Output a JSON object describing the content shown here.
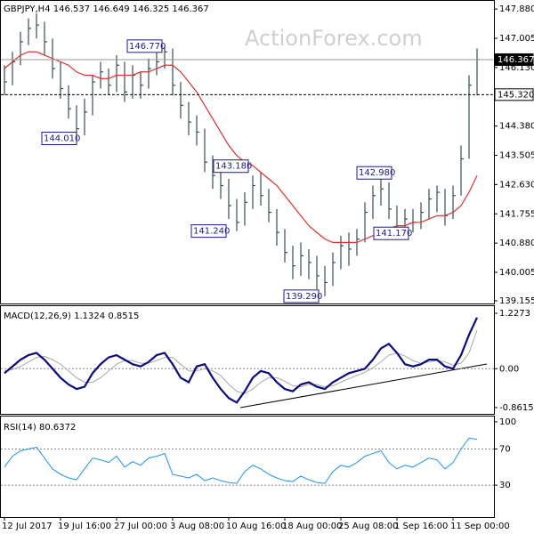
{
  "chart_data": [
    {
      "type": "ohlc",
      "title": "GBPJPY,H4",
      "readout": [
        146.537,
        146.649,
        146.325,
        146.367
      ],
      "watermark": "ActionForex.com",
      "categories": [
        "12 Jul 2017",
        null,
        null,
        null,
        null,
        null,
        null,
        "19 Jul 16:00",
        null,
        null,
        null,
        null,
        null,
        null,
        "27 Jul 00:00",
        null,
        null,
        null,
        null,
        null,
        null,
        "3 Aug 08:00",
        null,
        null,
        null,
        null,
        null,
        null,
        "10 Aug 16:00",
        null,
        null,
        null,
        null,
        null,
        null,
        "18 Aug 00:00",
        null,
        null,
        null,
        null,
        null,
        null,
        "25 Aug 08:00",
        null,
        null,
        null,
        null,
        null,
        null,
        "1 Sep 16:00",
        null,
        null,
        null,
        null,
        null,
        null,
        "11 Sep 00:00",
        null,
        null,
        null
      ],
      "color": "#36504f",
      "high": [
        146.2,
        146.6,
        147.2,
        147.6,
        147.75,
        147.5,
        147.0,
        146.3,
        145.6,
        145.0,
        145.2,
        145.9,
        146.3,
        146.1,
        146.5,
        146.3,
        146.2,
        146.0,
        146.4,
        146.6,
        146.77,
        146.7,
        145.7,
        145.1,
        144.7,
        144.3,
        143.5,
        143.18,
        142.8,
        142.2,
        142.4,
        142.9,
        143.0,
        142.5,
        141.9,
        141.3,
        140.8,
        140.9,
        140.7,
        140.5,
        140.2,
        140.6,
        141.1,
        141.2,
        141.3,
        142.1,
        142.6,
        142.98,
        142.7,
        142.0,
        141.9,
        141.9,
        142.1,
        142.5,
        142.6,
        142.5,
        142.6,
        143.8,
        145.9,
        146.7
      ],
      "low": [
        145.3,
        145.6,
        146.2,
        146.8,
        147.0,
        146.5,
        145.8,
        145.2,
        144.6,
        144.01,
        144.1,
        144.7,
        145.5,
        145.3,
        145.4,
        145.1,
        145.2,
        145.2,
        145.5,
        145.9,
        146.1,
        145.3,
        144.6,
        144.1,
        143.8,
        143.0,
        142.5,
        142.2,
        141.6,
        141.24,
        141.4,
        141.9,
        142.0,
        141.5,
        140.8,
        140.3,
        139.8,
        139.9,
        139.8,
        139.5,
        139.29,
        139.6,
        140.1,
        140.2,
        140.5,
        140.9,
        141.6,
        142.0,
        141.6,
        141.17,
        141.2,
        141.2,
        141.3,
        141.6,
        141.8,
        141.4,
        141.6,
        142.3,
        143.4,
        145.3
      ],
      "close": [
        145.7,
        146.3,
        146.9,
        147.3,
        147.4,
        146.9,
        146.1,
        145.5,
        144.9,
        144.3,
        144.8,
        145.7,
        146.0,
        145.6,
        146.2,
        145.4,
        145.9,
        145.6,
        146.1,
        146.3,
        146.6,
        145.6,
        145.0,
        144.5,
        144.2,
        143.3,
        142.9,
        142.6,
        142.0,
        141.5,
        142.1,
        142.6,
        142.3,
        141.8,
        141.2,
        140.6,
        140.2,
        140.5,
        140.3,
        139.9,
        139.7,
        140.3,
        140.8,
        140.7,
        141.0,
        141.8,
        142.3,
        142.5,
        141.9,
        141.4,
        141.6,
        141.5,
        141.8,
        142.2,
        142.4,
        141.7,
        142.3,
        143.4,
        145.6,
        146.367
      ],
      "series": [
        {
          "color": "#e03030",
          "values": [
            146.1,
            146.3,
            146.5,
            146.6,
            146.6,
            146.5,
            146.4,
            146.3,
            146.2,
            146.0,
            145.9,
            145.9,
            145.8,
            145.8,
            145.9,
            145.9,
            145.9,
            146.0,
            146.0,
            146.1,
            146.2,
            146.2,
            146.0,
            145.7,
            145.4,
            145.0,
            144.6,
            144.2,
            143.8,
            143.5,
            143.3,
            143.2,
            143.0,
            142.8,
            142.6,
            142.3,
            142.0,
            141.7,
            141.4,
            141.2,
            141.0,
            140.9,
            140.9,
            140.9,
            140.9,
            141.0,
            141.1,
            141.2,
            141.3,
            141.4,
            141.4,
            141.5,
            141.5,
            141.6,
            141.7,
            141.7,
            141.8,
            142.0,
            142.4,
            142.9
          ]
        }
      ],
      "price_lines": [
        {
          "value": 146.367,
          "label": "146.367",
          "style": "solid"
        },
        {
          "value": 145.32,
          "label": "145.320",
          "style": "dashed"
        }
      ],
      "annotations": [
        {
          "value": 146.77,
          "label": "146.770"
        },
        {
          "value": 144.01,
          "label": "144.010"
        },
        {
          "value": 143.18,
          "label": "143.180"
        },
        {
          "value": 141.24,
          "label": "141.240"
        },
        {
          "value": 142.98,
          "label": "142.980"
        },
        {
          "value": 141.17,
          "label": "141.170"
        },
        {
          "value": 139.29,
          "label": "139.290"
        }
      ],
      "ylim": [
        139.1,
        148.15
      ],
      "yticks": [
        {
          "value": 147.88,
          "label": "147.880"
        },
        147.005,
        {
          "value": 146.13,
          "label": "146.130"
        },
        {
          "value": 144.38,
          "label": "144.380"
        },
        143.505,
        {
          "value": 142.63,
          "label": "142.630"
        },
        141.755,
        {
          "value": 140.88,
          "label": "140.880"
        },
        140.005,
        139.155
      ]
    },
    {
      "type": "line",
      "title": "MACD(12,26,9)",
      "readout": [
        1.1324,
        0.8515
      ],
      "series": [
        {
          "color": "#0a0a80",
          "values": [
            -0.1,
            0.05,
            0.2,
            0.3,
            0.35,
            0.2,
            0.0,
            -0.2,
            -0.35,
            -0.45,
            -0.4,
            -0.1,
            0.1,
            0.25,
            0.3,
            0.2,
            0.1,
            0.05,
            0.15,
            0.3,
            0.35,
            0.1,
            -0.2,
            -0.3,
            0.05,
            0.1,
            -0.2,
            -0.45,
            -0.65,
            -0.75,
            -0.5,
            -0.2,
            -0.05,
            -0.1,
            -0.3,
            -0.45,
            -0.5,
            -0.35,
            -0.3,
            -0.4,
            -0.45,
            -0.3,
            -0.2,
            -0.1,
            -0.05,
            0.0,
            0.2,
            0.45,
            0.55,
            0.35,
            0.1,
            0.05,
            0.1,
            0.2,
            0.2,
            0.05,
            0.0,
            0.3,
            0.75,
            1.1324
          ]
        },
        {
          "color": "#a8a8a8",
          "values": [
            -0.05,
            -0.02,
            0.05,
            0.15,
            0.25,
            0.27,
            0.2,
            0.1,
            -0.05,
            -0.2,
            -0.3,
            -0.3,
            -0.2,
            -0.05,
            0.1,
            0.18,
            0.18,
            0.12,
            0.12,
            0.18,
            0.25,
            0.25,
            0.1,
            -0.05,
            -0.05,
            0.0,
            -0.05,
            -0.15,
            -0.35,
            -0.5,
            -0.55,
            -0.45,
            -0.3,
            -0.2,
            -0.2,
            -0.28,
            -0.38,
            -0.4,
            -0.35,
            -0.35,
            -0.4,
            -0.38,
            -0.3,
            -0.22,
            -0.15,
            -0.08,
            0.02,
            0.15,
            0.3,
            0.35,
            0.28,
            0.18,
            0.12,
            0.15,
            0.18,
            0.15,
            0.08,
            0.12,
            0.35,
            0.8515
          ]
        }
      ],
      "levels": [
        0
      ],
      "ylim": [
        -1.0,
        1.365
      ],
      "yticks": [
        1.2273,
        {
          "value": 0,
          "label": "0.00"
        },
        -0.8615
      ]
    },
    {
      "type": "line",
      "title": "RSI(14)",
      "readout": [
        80.6372
      ],
      "series": [
        {
          "color": "#1e90ff",
          "values": [
            50,
            62,
            68,
            70,
            72,
            60,
            48,
            42,
            38,
            36,
            48,
            60,
            58,
            55,
            62,
            50,
            56,
            52,
            60,
            62,
            65,
            42,
            40,
            38,
            42,
            35,
            38,
            35,
            33,
            32,
            45,
            52,
            48,
            42,
            38,
            35,
            34,
            40,
            36,
            33,
            32,
            45,
            52,
            50,
            55,
            62,
            65,
            68,
            55,
            48,
            52,
            50,
            55,
            60,
            58,
            48,
            55,
            70,
            82,
            80.6372
          ]
        }
      ],
      "levels": [
        70,
        30
      ],
      "ylim": [
        -4.3,
        103.9
      ],
      "yticks": [
        100,
        70,
        30
      ]
    }
  ]
}
